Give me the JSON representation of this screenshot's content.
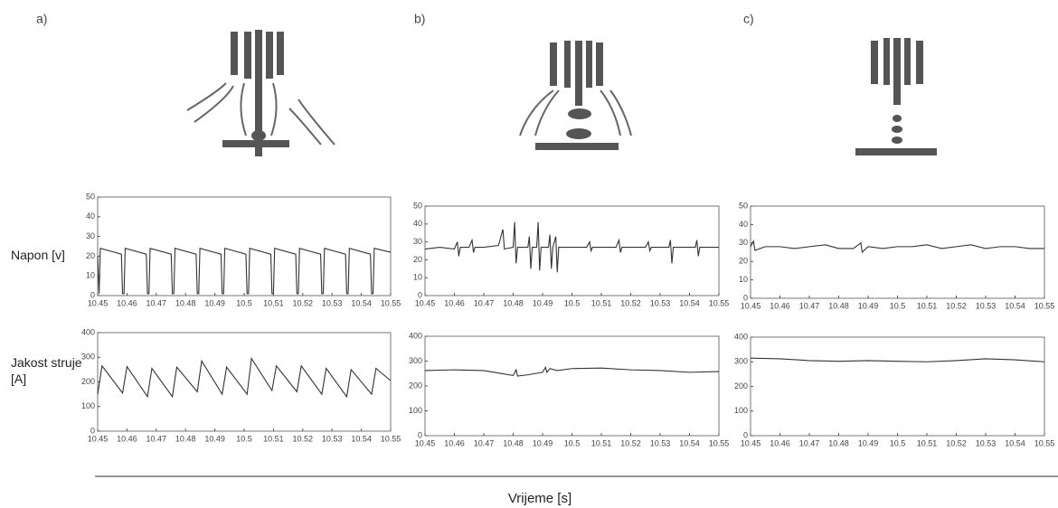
{
  "panel_labels": [
    "a)",
    "b)",
    "c)"
  ],
  "row_labels": [
    "Napon [v]",
    "Jakost struje [A]"
  ],
  "xlabel": "Vrijeme [s]",
  "chart_data": [
    {
      "type": "line",
      "xlim": [
        10.45,
        10.55
      ],
      "xticks": [
        10.45,
        10.46,
        10.47,
        10.48,
        10.49,
        10.5,
        10.51,
        10.52,
        10.53,
        10.54,
        10.55
      ],
      "ylim": [
        0,
        50
      ],
      "yticks": [
        0,
        10,
        20,
        30,
        40,
        50
      ],
      "series": [
        {
          "color": "#333333",
          "x": [
            10.45,
            10.4505,
            10.4509,
            10.4581,
            10.4585,
            10.459,
            10.4594,
            10.4666,
            10.467,
            10.4675,
            10.4679,
            10.4751,
            10.4755,
            10.476,
            10.4764,
            10.4836,
            10.484,
            10.4845,
            10.4849,
            10.4921,
            10.4925,
            10.493,
            10.4934,
            10.5006,
            10.501,
            10.5015,
            10.5019,
            10.5091,
            10.5095,
            10.51,
            10.5104,
            10.5176,
            10.518,
            10.5185,
            10.5189,
            10.5261,
            10.5265,
            10.527,
            10.5274,
            10.5346,
            10.535,
            10.5355,
            10.5359,
            10.5431,
            10.5435,
            10.544,
            10.5444,
            10.55
          ],
          "values": [
            20,
            1,
            24,
            21,
            1,
            1,
            24,
            21,
            1,
            1,
            24,
            21,
            1,
            1,
            24,
            21,
            1,
            1,
            24,
            21,
            1,
            1,
            24,
            21,
            1,
            1,
            24,
            21,
            1,
            1,
            24,
            21,
            1,
            1,
            24,
            21,
            1,
            1,
            24,
            21,
            1,
            1,
            24,
            21,
            1,
            1,
            24,
            22
          ]
        }
      ]
    },
    {
      "type": "line",
      "xlim": [
        10.45,
        10.55
      ],
      "xticks": [
        10.45,
        10.46,
        10.47,
        10.48,
        10.49,
        10.5,
        10.51,
        10.52,
        10.53,
        10.54,
        10.55
      ],
      "ylim": [
        0,
        50
      ],
      "yticks": [
        0,
        10,
        20,
        30,
        40,
        50
      ],
      "series": [
        {
          "color": "#333333",
          "x": [
            10.45,
            10.455,
            10.46,
            10.461,
            10.4615,
            10.462,
            10.465,
            10.466,
            10.4665,
            10.467,
            10.47,
            10.475,
            10.4765,
            10.477,
            10.48,
            10.4805,
            10.481,
            10.4815,
            10.485,
            10.4855,
            10.486,
            10.4865,
            10.488,
            10.4885,
            10.489,
            10.4895,
            10.492,
            10.4925,
            10.493,
            10.4935,
            10.4945,
            10.495,
            10.4955,
            10.5,
            10.505,
            10.506,
            10.5065,
            10.507,
            10.515,
            10.516,
            10.5165,
            10.517,
            10.525,
            10.526,
            10.5265,
            10.527,
            10.533,
            10.5335,
            10.534,
            10.5345,
            10.542,
            10.5425,
            10.543,
            10.5435,
            10.55
          ],
          "values": [
            26,
            27,
            26,
            30,
            22,
            27,
            27,
            31,
            24,
            27,
            27,
            28,
            37,
            26,
            27,
            41,
            18,
            27,
            27,
            33,
            15,
            27,
            27,
            41,
            14,
            27,
            27,
            34,
            15,
            27,
            33,
            13,
            27,
            27,
            27,
            30,
            25,
            27,
            27,
            31,
            24,
            27,
            27,
            30,
            25,
            27,
            27,
            31,
            18,
            27,
            27,
            31,
            22,
            27,
            27
          ]
        }
      ]
    },
    {
      "type": "line",
      "xlim": [
        10.45,
        10.55
      ],
      "xticks": [
        10.45,
        10.46,
        10.47,
        10.48,
        10.49,
        10.5,
        10.51,
        10.52,
        10.53,
        10.54,
        10.55
      ],
      "ylim": [
        0,
        50
      ],
      "yticks": [
        0,
        10,
        20,
        30,
        40,
        50
      ],
      "series": [
        {
          "color": "#333333",
          "x": [
            10.45,
            10.451,
            10.4515,
            10.455,
            10.46,
            10.465,
            10.47,
            10.4755,
            10.48,
            10.485,
            10.4875,
            10.488,
            10.49,
            10.495,
            10.5,
            10.505,
            10.51,
            10.515,
            10.52,
            10.525,
            10.53,
            10.535,
            10.54,
            10.545,
            10.55
          ],
          "values": [
            28,
            31,
            26,
            28,
            28,
            27,
            28,
            29,
            27,
            27,
            30,
            25,
            28,
            27,
            28,
            28,
            29,
            27,
            28,
            29,
            27,
            28,
            28,
            27,
            27
          ]
        }
      ]
    },
    {
      "type": "line",
      "xlim": [
        10.45,
        10.55
      ],
      "xticks": [
        10.45,
        10.46,
        10.47,
        10.48,
        10.49,
        10.5,
        10.51,
        10.52,
        10.53,
        10.54,
        10.55
      ],
      "ylim": [
        0,
        400
      ],
      "yticks": [
        0,
        100,
        200,
        300,
        400
      ],
      "series": [
        {
          "color": "#333333",
          "x": [
            10.45,
            10.4515,
            10.4585,
            10.46,
            10.467,
            10.4685,
            10.4755,
            10.477,
            10.484,
            10.4855,
            10.4925,
            10.494,
            10.501,
            10.5025,
            10.5095,
            10.511,
            10.518,
            10.5195,
            10.5265,
            10.528,
            10.535,
            10.5365,
            10.5435,
            10.545,
            10.55
          ],
          "values": [
            150,
            265,
            155,
            262,
            140,
            255,
            140,
            260,
            160,
            285,
            150,
            260,
            150,
            295,
            165,
            265,
            160,
            265,
            150,
            255,
            140,
            250,
            150,
            255,
            205
          ]
        }
      ]
    },
    {
      "type": "line",
      "xlim": [
        10.45,
        10.55
      ],
      "xticks": [
        10.45,
        10.46,
        10.47,
        10.48,
        10.49,
        10.5,
        10.51,
        10.52,
        10.53,
        10.54,
        10.55
      ],
      "ylim": [
        0,
        400
      ],
      "yticks": [
        0,
        100,
        200,
        300,
        400
      ],
      "series": [
        {
          "color": "#333333",
          "x": [
            10.45,
            10.46,
            10.47,
            10.475,
            10.48,
            10.481,
            10.4815,
            10.485,
            10.49,
            10.491,
            10.4915,
            10.4925,
            10.495,
            10.5,
            10.51,
            10.52,
            10.53,
            10.54,
            10.55
          ],
          "values": [
            262,
            265,
            262,
            252,
            242,
            265,
            240,
            245,
            255,
            275,
            255,
            270,
            262,
            270,
            272,
            265,
            262,
            255,
            258
          ]
        }
      ]
    },
    {
      "type": "line",
      "xlim": [
        10.45,
        10.55
      ],
      "xticks": [
        10.45,
        10.46,
        10.47,
        10.48,
        10.49,
        10.5,
        10.51,
        10.52,
        10.53,
        10.54,
        10.55
      ],
      "ylim": [
        0,
        400
      ],
      "yticks": [
        0,
        100,
        200,
        300,
        400
      ],
      "series": [
        {
          "color": "#333333",
          "x": [
            10.45,
            10.46,
            10.47,
            10.48,
            10.49,
            10.5,
            10.51,
            10.52,
            10.53,
            10.54,
            10.55
          ],
          "values": [
            315,
            312,
            305,
            302,
            305,
            302,
            300,
            305,
            312,
            308,
            300
          ]
        }
      ]
    }
  ]
}
